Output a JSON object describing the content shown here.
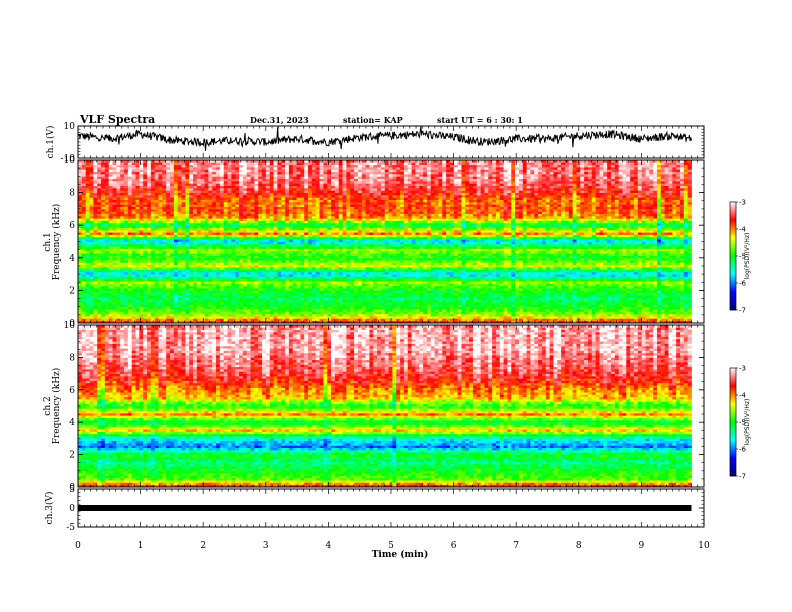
{
  "header": {
    "title": "VLF Spectra",
    "date": "Dec.31, 2023",
    "station": "station= KAP",
    "start_ut": "start UT =  6 : 30: 1"
  },
  "chart_data": [
    {
      "type": "line",
      "panel": "ch1-waveform",
      "ylabel": "ch.1(V)",
      "ylim": [
        -10,
        10
      ],
      "y_ticks": [
        "10",
        "-10"
      ],
      "xlim": [
        0,
        10
      ],
      "series": [
        {
          "x": [
            0,
            0.5,
            1,
            1.5,
            2,
            2.5,
            3,
            3.5,
            4,
            4.5,
            5,
            5.5,
            6,
            6.5,
            7,
            7.5,
            8,
            8.5,
            9,
            9.5,
            9.8
          ],
          "y": [
            4,
            2,
            5,
            1,
            0,
            1,
            0,
            2,
            0,
            3,
            4,
            5,
            3,
            0,
            2,
            2,
            4,
            5,
            2,
            4,
            2
          ]
        }
      ]
    },
    {
      "type": "heatmap",
      "panel": "ch1-spectrogram",
      "ylabel": "ch.1\nFrequency (kHz)",
      "ylim": [
        0,
        10
      ],
      "y_ticks": [
        "0",
        "2",
        "4",
        "6",
        "8",
        "10"
      ],
      "xlim": [
        0,
        10
      ],
      "profile_freq_khz": [
        0,
        0.5,
        1,
        1.5,
        2,
        2.5,
        3,
        3.5,
        4,
        4.5,
        5,
        5.5,
        6,
        6.5,
        7,
        7.5,
        8,
        8.5,
        9,
        9.5,
        10
      ],
      "profile_log_psd": [
        -3.6,
        -4.6,
        -5.0,
        -5.2,
        -5.0,
        -4.6,
        -5.8,
        -4.4,
        -5.0,
        -4.6,
        -5.8,
        -4.0,
        -5.2,
        -4.0,
        -3.8,
        -3.9,
        -3.6,
        -3.4,
        -3.3,
        -3.3,
        -3.3
      ]
    },
    {
      "type": "heatmap",
      "panel": "ch2-spectrogram",
      "ylabel": "ch.2\nFrequency (kHz)",
      "ylim": [
        0,
        10
      ],
      "y_ticks": [
        "0",
        "2",
        "4",
        "6",
        "8",
        "10"
      ],
      "xlim": [
        0,
        10
      ],
      "profile_freq_khz": [
        0,
        0.5,
        1,
        1.5,
        2,
        2.5,
        3,
        3.5,
        4,
        4.5,
        5,
        5.5,
        6,
        6.5,
        7,
        7.5,
        8,
        8.5,
        9,
        9.5,
        10
      ],
      "profile_log_psd": [
        -3.5,
        -4.8,
        -5.0,
        -5.3,
        -5.0,
        -6.0,
        -5.6,
        -4.2,
        -5.2,
        -4.0,
        -5.0,
        -4.2,
        -4.0,
        -3.7,
        -3.5,
        -3.4,
        -3.3,
        -3.2,
        -3.2,
        -3.2,
        -3.2
      ]
    },
    {
      "type": "line",
      "panel": "ch3-waveform",
      "ylabel": "ch.3(V)",
      "ylim": [
        -5,
        5
      ],
      "y_ticks": [
        "5",
        "0",
        "-5"
      ],
      "xlim": [
        0,
        10
      ],
      "series": [
        {
          "x": [
            0,
            9.8
          ],
          "y": [
            0,
            0
          ]
        }
      ]
    }
  ],
  "x_axis": {
    "label": "Time (min)",
    "ticks": [
      "0",
      "1",
      "2",
      "3",
      "4",
      "5",
      "6",
      "7",
      "8",
      "9",
      "10"
    ]
  },
  "colorbar": {
    "label": "log(PSD)(V²/Hz)",
    "ticks": [
      "-3",
      "-4",
      "-5",
      "-6",
      "-7"
    ],
    "range": [
      -7,
      -3
    ],
    "colors": [
      "#000080",
      "#0000ff",
      "#00ffff",
      "#00ff00",
      "#ffff00",
      "#ff0000",
      "#ffffff"
    ]
  }
}
